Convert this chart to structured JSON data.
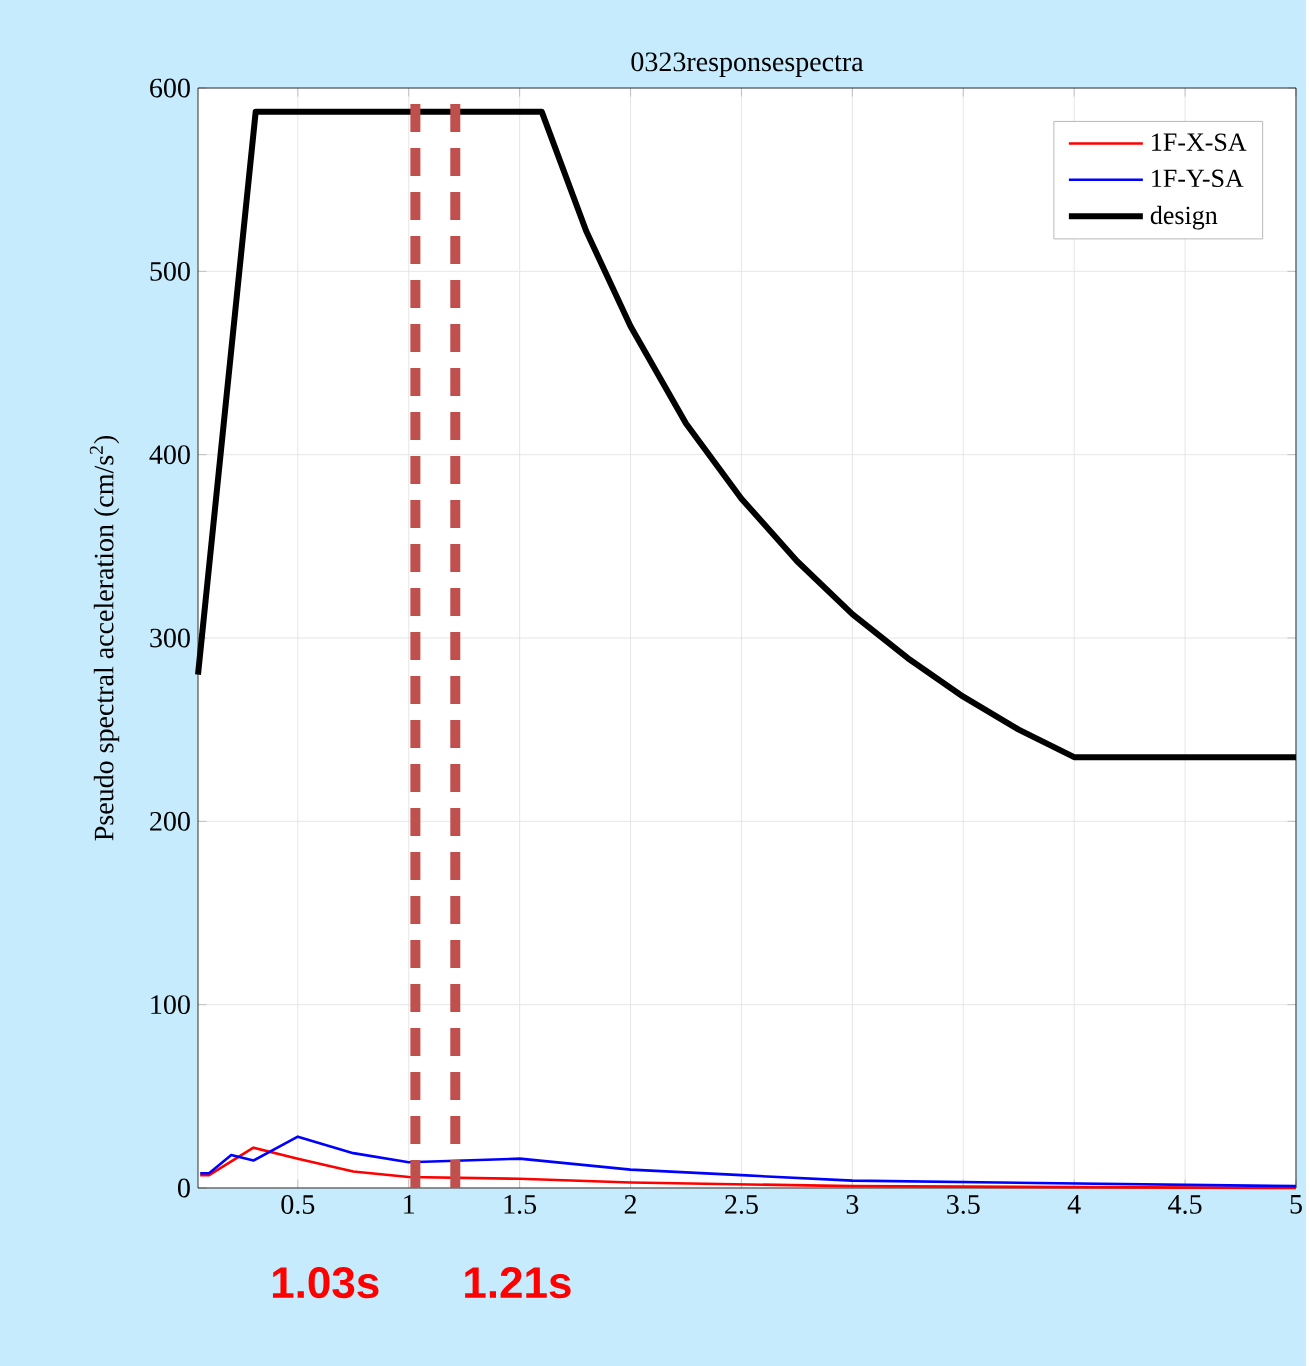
{
  "chart_data": {
    "type": "line",
    "title": "0323responsespectra",
    "ylabel": "Pseudo spectral acceleration (cm/s$^{2}$)",
    "xlim": [
      0.05,
      5
    ],
    "ylim": [
      0,
      600
    ],
    "xticks": [
      0.5,
      1,
      1.5,
      2,
      2.5,
      3,
      3.5,
      4,
      4.5,
      5
    ],
    "yticks": [
      0,
      100,
      200,
      300,
      400,
      500,
      600
    ],
    "grid": true,
    "legend": "top right",
    "line_style": "solid",
    "marker": "none",
    "series": [
      {
        "name": "1F-X-SA",
        "color": "#ff0000",
        "x": [
          0.06,
          0.1,
          0.3,
          0.5,
          0.75,
          1.0,
          1.5,
          2.0,
          3.0,
          5.0
        ],
        "values": [
          7,
          7,
          22,
          16,
          9,
          6,
          5,
          3,
          1,
          0
        ]
      },
      {
        "name": "1F-Y-SA",
        "color": "#0000ff",
        "x": [
          0.06,
          0.1,
          0.2,
          0.3,
          0.5,
          0.75,
          1.0,
          1.5,
          2.0,
          2.5,
          3.0,
          5.0
        ],
        "values": [
          8,
          8,
          18,
          15,
          28,
          19,
          14,
          16,
          10,
          7,
          4,
          1
        ]
      },
      {
        "name": "design",
        "color": "#000000",
        "x": [
          0.05,
          0.31,
          1.6,
          1.8,
          2.0,
          2.25,
          2.5,
          2.75,
          3.0,
          3.25,
          3.5,
          3.75,
          4.0,
          5.0
        ],
        "values": [
          280,
          587,
          587,
          522,
          470,
          417,
          376,
          342,
          313,
          289,
          268,
          250,
          235,
          235
        ]
      }
    ],
    "ref_lines": [
      {
        "axis": "x",
        "value": 1.03,
        "label": "1.03s",
        "color": "#c0504d",
        "line_style": "dashed"
      },
      {
        "axis": "x",
        "value": 1.21,
        "label": "1.21s",
        "color": "#c0504d",
        "line_style": "dashed"
      }
    ]
  }
}
